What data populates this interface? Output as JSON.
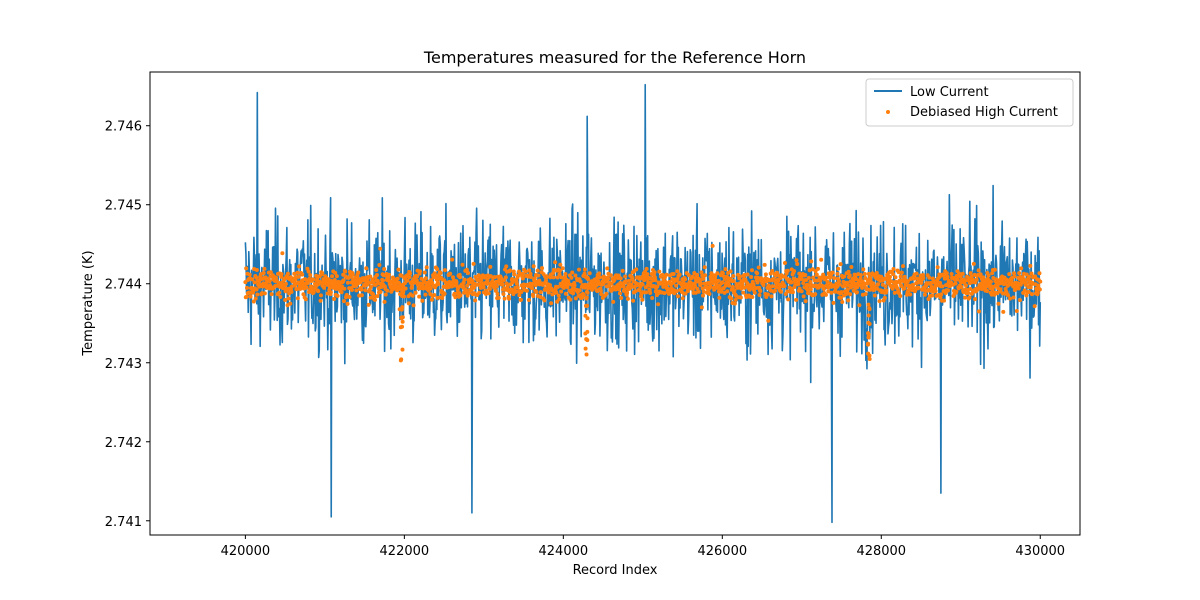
{
  "chart_data": {
    "type": "line",
    "title": "Temperatures measured for the Reference Horn",
    "xlabel": "Record Index",
    "ylabel": "Temperature (K)",
    "xlim": [
      418800,
      430500
    ],
    "ylim": [
      2.74082,
      2.74668
    ],
    "xticks": [
      420000,
      422000,
      424000,
      426000,
      428000,
      430000
    ],
    "xtick_labels": [
      "420000",
      "422000",
      "424000",
      "426000",
      "428000",
      "430000"
    ],
    "yticks": [
      2.741,
      2.742,
      2.743,
      2.744,
      2.745,
      2.746
    ],
    "ytick_labels": [
      "2.741",
      "2.742",
      "2.743",
      "2.744",
      "2.745",
      "2.746"
    ],
    "legend_position": "top-right",
    "series": [
      {
        "name": "Low Current",
        "style": "line",
        "color": "#1f77b4",
        "x_start": 420000,
        "x_end": 430000,
        "center": 2.744,
        "typical_range": [
          2.7426,
          2.7455
        ],
        "max": 2.74652,
        "min": 2.74098,
        "notable_peaks": [
          {
            "x": 420150,
            "y": 2.74642
          },
          {
            "x": 425030,
            "y": 2.74652
          },
          {
            "x": 424300,
            "y": 2.74612
          },
          {
            "x": 421080,
            "y": 2.74105
          },
          {
            "x": 422850,
            "y": 2.7411
          },
          {
            "x": 427380,
            "y": 2.74098
          },
          {
            "x": 428750,
            "y": 2.74135
          }
        ]
      },
      {
        "name": "Debiased High Current",
        "style": "scatter",
        "color": "#ff7f0e",
        "x_start": 420000,
        "x_end": 430000,
        "center": 2.744,
        "typical_range": [
          2.7437,
          2.7443
        ],
        "dips": [
          {
            "x": 421970,
            "min_y": 2.74288
          },
          {
            "x": 424290,
            "min_y": 2.743
          },
          {
            "x": 427840,
            "min_y": 2.743
          }
        ]
      }
    ]
  }
}
